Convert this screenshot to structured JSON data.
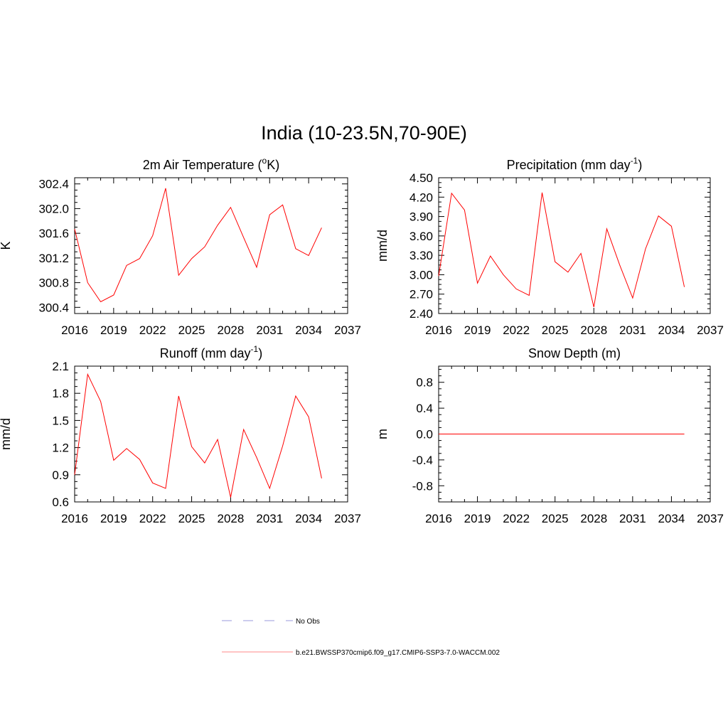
{
  "figure_title": "India (10-23.5N,70-90E)",
  "legend": [
    {
      "label": "No Obs",
      "color": "#9999dd",
      "dash": true
    },
    {
      "label": "b.e21.BWSSP370cmip6.f09_g17.CMIP6-SSP3-7.0-WACCM.002",
      "color": "#ff8888",
      "dash": false
    }
  ],
  "chart_data": [
    {
      "type": "line",
      "title_main": "2m Air Temperature (",
      "title_sup": "o",
      "title_end": "K)",
      "ylabel": "K",
      "xlim": [
        2016,
        2037
      ],
      "ylim": [
        300.3,
        302.5
      ],
      "xticks": [
        2016,
        2019,
        2022,
        2025,
        2028,
        2031,
        2034,
        2037
      ],
      "yticks": [
        "300.4",
        "300.8",
        "301.2",
        "301.6",
        "302.0",
        "302.4"
      ],
      "x": [
        2016,
        2017,
        2018,
        2019,
        2020,
        2021,
        2022,
        2023,
        2024,
        2025,
        2026,
        2027,
        2028,
        2029,
        2030,
        2031,
        2032,
        2033,
        2034,
        2035
      ],
      "series": [
        {
          "values": [
            301.67,
            300.8,
            300.49,
            300.6,
            301.08,
            301.19,
            301.56,
            302.33,
            300.92,
            301.19,
            301.38,
            301.73,
            302.02,
            301.53,
            301.05,
            301.9,
            302.06,
            301.35,
            301.24,
            301.69
          ],
          "color": "#ff0000"
        }
      ]
    },
    {
      "type": "line",
      "title_main": "Precipitation (mm day",
      "title_sup": "-1",
      "title_end": ")",
      "ylabel": "mm/d",
      "xlim": [
        2016,
        2037
      ],
      "ylim": [
        2.4,
        4.5
      ],
      "xticks": [
        2016,
        2019,
        2022,
        2025,
        2028,
        2031,
        2034,
        2037
      ],
      "yticks": [
        "2.40",
        "2.70",
        "3.00",
        "3.30",
        "3.60",
        "3.90",
        "4.20",
        "4.50"
      ],
      "x": [
        2016,
        2017,
        2018,
        2019,
        2020,
        2021,
        2022,
        2023,
        2024,
        2025,
        2026,
        2027,
        2028,
        2029,
        2030,
        2031,
        2032,
        2033,
        2034,
        2035
      ],
      "series": [
        {
          "values": [
            2.98,
            4.26,
            4.0,
            2.87,
            3.29,
            3.0,
            2.78,
            2.68,
            4.27,
            3.2,
            3.04,
            3.33,
            2.5,
            3.71,
            3.15,
            2.64,
            3.4,
            3.91,
            3.75,
            2.81
          ],
          "color": "#ff0000"
        }
      ]
    },
    {
      "type": "line",
      "title_main": "Runoff (mm day",
      "title_sup": "-1",
      "title_end": ")",
      "ylabel": "mm/d",
      "xlim": [
        2016,
        2037
      ],
      "ylim": [
        0.6,
        2.1
      ],
      "xticks": [
        2016,
        2019,
        2022,
        2025,
        2028,
        2031,
        2034,
        2037
      ],
      "yticks": [
        "0.6",
        "0.9",
        "1.2",
        "1.5",
        "1.8",
        "2.1"
      ],
      "x": [
        2016,
        2017,
        2018,
        2019,
        2020,
        2021,
        2022,
        2023,
        2024,
        2025,
        2026,
        2027,
        2028,
        2029,
        2030,
        2031,
        2032,
        2033,
        2034,
        2035
      ],
      "series": [
        {
          "values": [
            0.9,
            2.01,
            1.71,
            1.06,
            1.19,
            1.07,
            0.81,
            0.75,
            1.77,
            1.21,
            1.03,
            1.29,
            0.65,
            1.4,
            1.09,
            0.75,
            1.22,
            1.77,
            1.54,
            0.86
          ],
          "color": "#ff0000"
        }
      ]
    },
    {
      "type": "line",
      "title_main": "Snow Depth (m)",
      "title_sup": "",
      "title_end": "",
      "ylabel": "m",
      "xlim": [
        2016,
        2037
      ],
      "ylim": [
        -1.05,
        1.05
      ],
      "xticks": [
        2016,
        2019,
        2022,
        2025,
        2028,
        2031,
        2034,
        2037
      ],
      "yticks": [
        "-0.8",
        "-0.4",
        "0.0",
        "0.4",
        "0.8"
      ],
      "x": [
        2016,
        2017,
        2018,
        2019,
        2020,
        2021,
        2022,
        2023,
        2024,
        2025,
        2026,
        2027,
        2028,
        2029,
        2030,
        2031,
        2032,
        2033,
        2034,
        2035
      ],
      "series": [
        {
          "values": [
            0,
            0,
            0,
            0,
            0,
            0,
            0,
            0,
            0,
            0,
            0,
            0,
            0,
            0,
            0,
            0,
            0,
            0,
            0,
            0
          ],
          "color": "#ff0000"
        }
      ]
    }
  ]
}
